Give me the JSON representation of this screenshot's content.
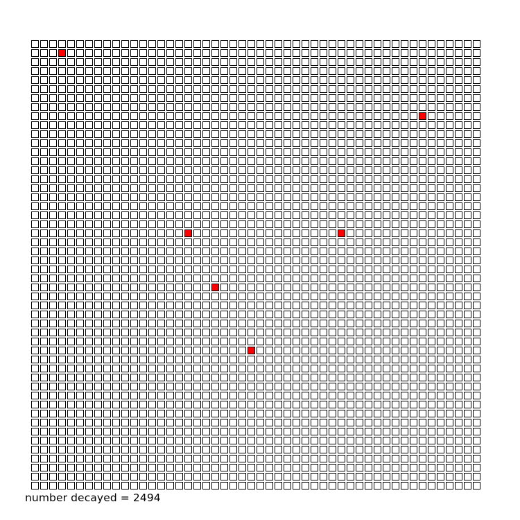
{
  "caption": {
    "label": "number decayed",
    "separator": " = ",
    "value": "2494"
  },
  "grid": {
    "rows": 50,
    "cols": 50,
    "undecayed_fill": "#ffffff",
    "decayed_fill": "#ff0000",
    "outline_color": "#000000",
    "remaining_cells": [
      {
        "row": 1,
        "col": 3
      },
      {
        "row": 8,
        "col": 43
      },
      {
        "row": 21,
        "col": 17
      },
      {
        "row": 21,
        "col": 34
      },
      {
        "row": 27,
        "col": 20
      },
      {
        "row": 34,
        "col": 24
      }
    ]
  }
}
